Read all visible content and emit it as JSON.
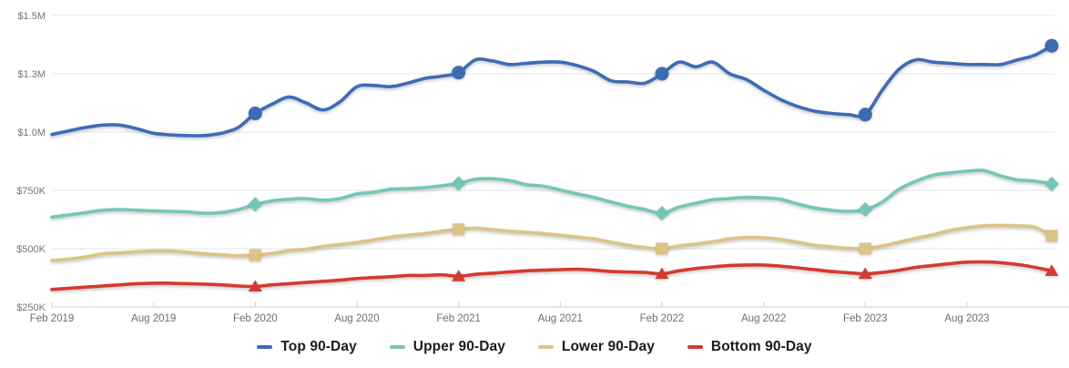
{
  "colors": {
    "background": "#ffffff",
    "gridline": "#e4e4e4",
    "axis_line": "#c9d0da",
    "y_tick_label": "#757575",
    "x_tick_label": "#6e6e6e",
    "legend_text": "#1c1c1c"
  },
  "chart_data": {
    "type": "line",
    "title": "",
    "xlabel": "",
    "ylabel": "",
    "grid": true,
    "legend_position": "bottom",
    "y_unit": "USD thousands",
    "ylim": [
      250,
      1500
    ],
    "months": [
      "2019-02",
      "2019-03",
      "2019-04",
      "2019-05",
      "2019-06",
      "2019-07",
      "2019-08",
      "2019-09",
      "2019-10",
      "2019-11",
      "2019-12",
      "2020-01",
      "2020-02",
      "2020-03",
      "2020-04",
      "2020-05",
      "2020-06",
      "2020-07",
      "2020-08",
      "2020-09",
      "2020-10",
      "2020-11",
      "2020-12",
      "2021-01",
      "2021-02",
      "2021-03",
      "2021-04",
      "2021-05",
      "2021-06",
      "2021-07",
      "2021-08",
      "2021-09",
      "2021-10",
      "2021-11",
      "2021-12",
      "2022-01",
      "2022-02",
      "2022-03",
      "2022-04",
      "2022-05",
      "2022-06",
      "2022-07",
      "2022-08",
      "2022-09",
      "2022-10",
      "2022-11",
      "2022-12",
      "2023-01",
      "2023-02",
      "2023-03",
      "2023-04",
      "2023-05",
      "2023-06",
      "2023-07",
      "2023-08",
      "2023-09",
      "2023-10",
      "2023-11",
      "2023-12",
      "2024-01"
    ],
    "x_ticks": [
      {
        "index": 0,
        "label": "Feb 2019"
      },
      {
        "index": 6,
        "label": "Aug 2019"
      },
      {
        "index": 12,
        "label": "Feb 2020"
      },
      {
        "index": 18,
        "label": "Aug 2020"
      },
      {
        "index": 24,
        "label": "Feb 2021"
      },
      {
        "index": 30,
        "label": "Aug 2021"
      },
      {
        "index": 36,
        "label": "Feb 2022"
      },
      {
        "index": 42,
        "label": "Aug 2022"
      },
      {
        "index": 48,
        "label": "Feb 2023"
      },
      {
        "index": 54,
        "label": "Aug 2023"
      }
    ],
    "y_ticks": [
      {
        "value": 250,
        "label": "$250K"
      },
      {
        "value": 500,
        "label": "$500K"
      },
      {
        "value": 750,
        "label": "$750K"
      },
      {
        "value": 1000,
        "label": "$1.0M"
      },
      {
        "value": 1250,
        "label": "$1.3M"
      },
      {
        "value": 1500,
        "label": "$1.5M"
      }
    ],
    "series": [
      {
        "name": "Top 90-Day",
        "color": "#3d6cb4",
        "marker": "circle",
        "marker_indices": [
          12,
          24,
          36,
          48,
          59
        ],
        "values": [
          990,
          1005,
          1020,
          1030,
          1030,
          1015,
          995,
          988,
          985,
          985,
          995,
          1020,
          1080,
          1120,
          1150,
          1125,
          1095,
          1130,
          1195,
          1200,
          1195,
          1210,
          1230,
          1240,
          1255,
          1310,
          1305,
          1290,
          1295,
          1300,
          1300,
          1285,
          1260,
          1220,
          1215,
          1210,
          1250,
          1300,
          1280,
          1300,
          1250,
          1225,
          1180,
          1140,
          1110,
          1090,
          1080,
          1075,
          1075,
          1180,
          1270,
          1310,
          1300,
          1295,
          1290,
          1290,
          1290,
          1310,
          1330,
          1370
        ]
      },
      {
        "name": "Upper 90-Day",
        "color": "#74c7b8",
        "marker": "diamond",
        "marker_indices": [
          12,
          24,
          36,
          48,
          59
        ],
        "values": [
          635,
          645,
          655,
          665,
          668,
          665,
          662,
          660,
          658,
          652,
          655,
          668,
          690,
          705,
          712,
          715,
          708,
          715,
          735,
          742,
          755,
          758,
          762,
          770,
          780,
          798,
          800,
          792,
          775,
          768,
          752,
          735,
          720,
          700,
          682,
          668,
          652,
          678,
          695,
          710,
          715,
          720,
          718,
          712,
          692,
          675,
          665,
          660,
          668,
          700,
          755,
          790,
          815,
          825,
          832,
          835,
          812,
          795,
          790,
          778
        ]
      },
      {
        "name": "Lower 90-Day",
        "color": "#dcc387",
        "marker": "square",
        "marker_indices": [
          12,
          24,
          36,
          48,
          59
        ],
        "values": [
          450,
          455,
          465,
          478,
          482,
          487,
          490,
          490,
          485,
          478,
          474,
          470,
          472,
          480,
          492,
          498,
          510,
          518,
          527,
          538,
          550,
          558,
          565,
          575,
          583,
          588,
          582,
          575,
          570,
          565,
          558,
          550,
          542,
          528,
          515,
          505,
          500,
          512,
          520,
          530,
          542,
          548,
          547,
          540,
          528,
          515,
          508,
          502,
          500,
          512,
          528,
          545,
          560,
          578,
          590,
          598,
          600,
          598,
          592,
          555
        ]
      },
      {
        "name": "Bottom 90-Day",
        "color": "#d43a30",
        "marker": "triangle",
        "marker_indices": [
          12,
          24,
          36,
          48,
          59
        ],
        "values": [
          325,
          330,
          335,
          340,
          345,
          350,
          352,
          352,
          350,
          348,
          345,
          340,
          338,
          345,
          350,
          355,
          360,
          365,
          372,
          376,
          380,
          385,
          385,
          388,
          382,
          390,
          395,
          400,
          405,
          408,
          410,
          412,
          408,
          402,
          400,
          398,
          392,
          405,
          415,
          422,
          428,
          430,
          430,
          425,
          418,
          410,
          402,
          397,
          392,
          398,
          408,
          420,
          428,
          436,
          442,
          443,
          440,
          432,
          420,
          405
        ]
      }
    ]
  }
}
